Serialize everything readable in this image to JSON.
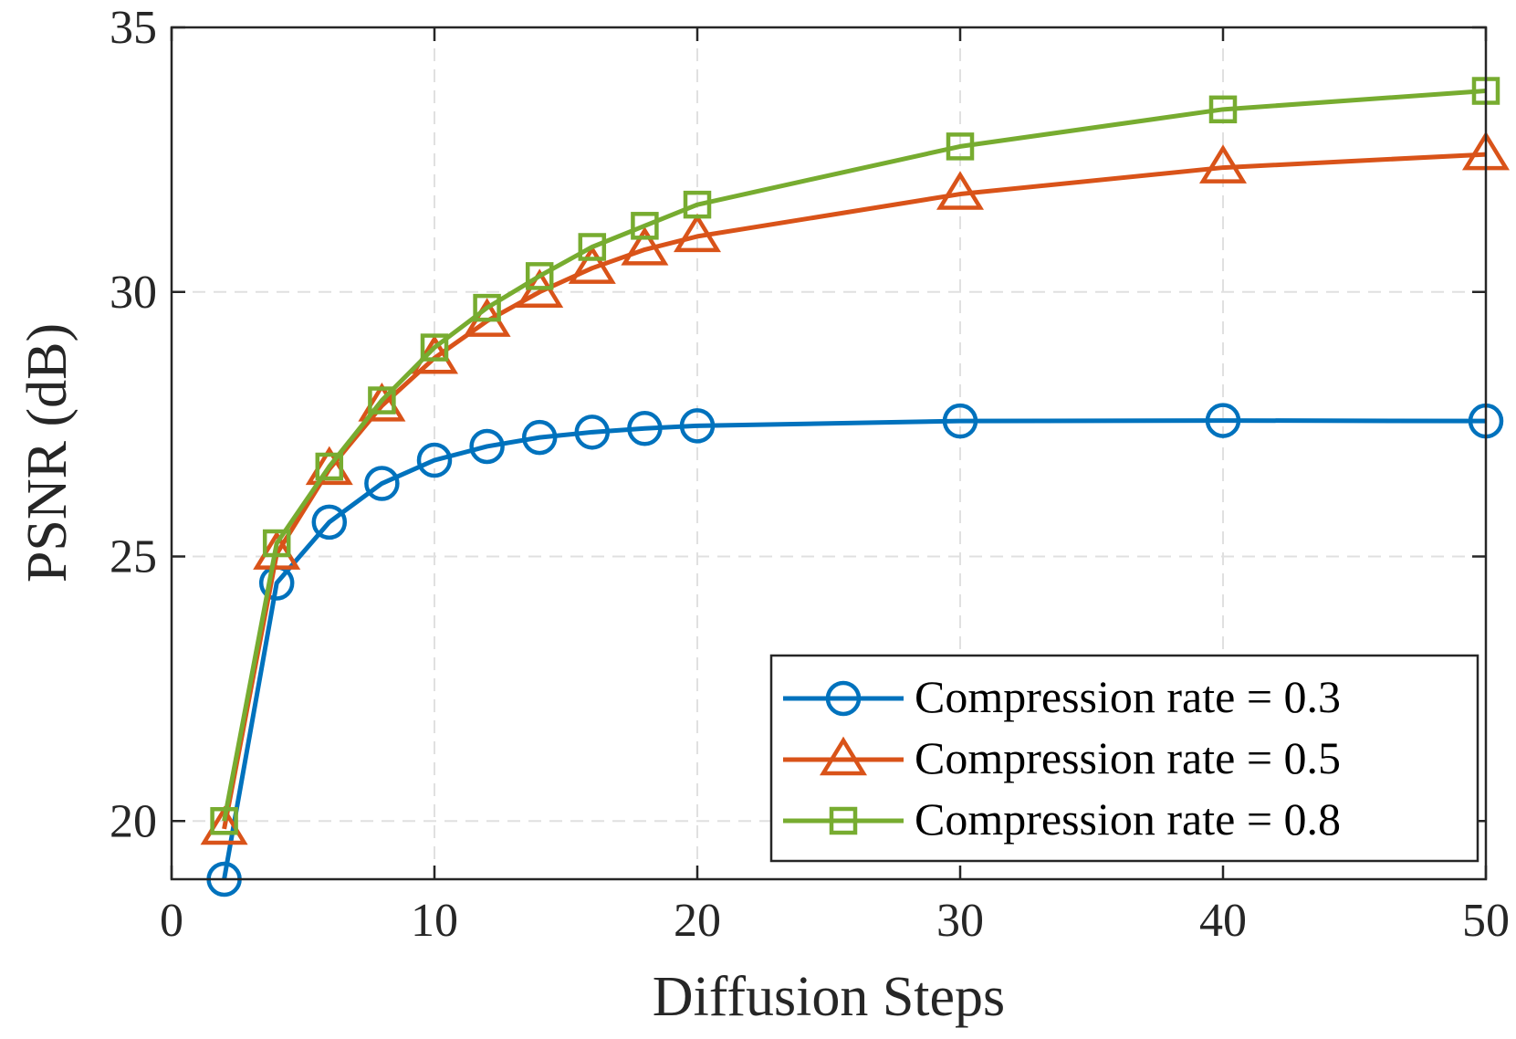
{
  "chart_data": {
    "type": "line",
    "xlabel": "Diffusion Steps",
    "ylabel": "PSNR (dB)",
    "xlim": [
      0,
      50
    ],
    "ylim": [
      18.9,
      35
    ],
    "xticks": [
      0,
      10,
      20,
      30,
      40,
      50
    ],
    "yticks": [
      20,
      25,
      30,
      35
    ],
    "grid": true,
    "legend_position": "bottom-right",
    "x": [
      2,
      4,
      6,
      8,
      10,
      12,
      14,
      16,
      18,
      20,
      30,
      40,
      50
    ],
    "series": [
      {
        "name": "Compression rate = 0.3",
        "color": "#0072BD",
        "marker": "circle",
        "values": [
          18.9,
          24.5,
          25.65,
          26.38,
          26.82,
          27.08,
          27.25,
          27.35,
          27.42,
          27.47,
          27.56,
          27.57,
          27.56
        ]
      },
      {
        "name": "Compression rate = 0.5",
        "color": "#D95319",
        "marker": "triangle",
        "values": [
          19.85,
          25.05,
          26.65,
          27.85,
          28.75,
          29.45,
          30.0,
          30.45,
          30.8,
          31.05,
          31.85,
          32.35,
          32.6
        ]
      },
      {
        "name": "Compression rate = 0.8",
        "color": "#77AC30",
        "marker": "square",
        "values": [
          20.0,
          25.25,
          26.7,
          27.95,
          28.95,
          29.7,
          30.3,
          30.85,
          31.25,
          31.65,
          32.75,
          33.45,
          33.8
        ]
      }
    ]
  }
}
